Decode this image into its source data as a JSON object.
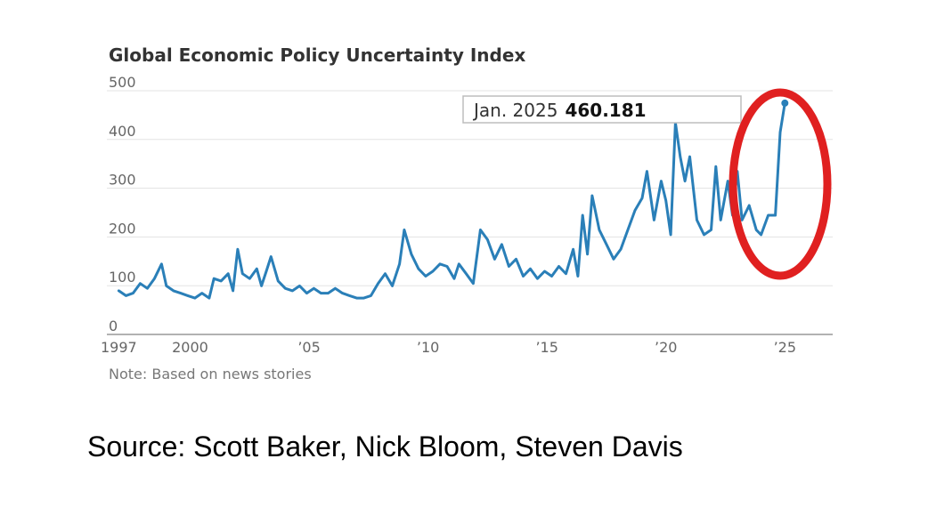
{
  "chart_data": {
    "type": "line",
    "title": "Global Economic Policy Uncertainty Index",
    "note": "Note: Based on news stories",
    "xlabel": "",
    "ylabel": "",
    "ylim": [
      0,
      500
    ],
    "xlim": [
      1996.5,
      2025.7
    ],
    "y_ticks": [
      0,
      100,
      200,
      300,
      400,
      500
    ],
    "x_ticks": [
      {
        "value": 1997,
        "label": "1997"
      },
      {
        "value": 2000,
        "label": "2000"
      },
      {
        "value": 2005,
        "label": "’05"
      },
      {
        "value": 2010,
        "label": "’10"
      },
      {
        "value": 2015,
        "label": "’15"
      },
      {
        "value": 2020,
        "label": "’20"
      },
      {
        "value": 2025,
        "label": "’25"
      }
    ],
    "grid": true,
    "legend": "none",
    "series_color": "#2a7fb8",
    "annotation": {
      "x": 2025.0,
      "y": 460.181,
      "label": "Jan. 2025",
      "value": "460.181"
    },
    "highlight_color": "#e02020",
    "series": [
      {
        "x": [
          1997.0,
          1997.3,
          1997.6,
          1997.9,
          1998.2,
          1998.5,
          1998.8,
          1999.0,
          1999.3,
          1999.6,
          1999.9,
          2000.2,
          2000.5,
          2000.8,
          2001.0,
          2001.3,
          2001.6,
          2001.8,
          2002.0,
          2002.2,
          2002.5,
          2002.8,
          2003.0,
          2003.2,
          2003.4,
          2003.7,
          2004.0,
          2004.3,
          2004.6,
          2004.9,
          2005.2,
          2005.5,
          2005.8,
          2006.1,
          2006.4,
          2006.7,
          2007.0,
          2007.3,
          2007.6,
          2007.9,
          2008.2,
          2008.5,
          2008.8,
          2009.0,
          2009.3,
          2009.6,
          2009.9,
          2010.2,
          2010.5,
          2010.8,
          2011.1,
          2011.3,
          2011.6,
          2011.9,
          2012.2,
          2012.5,
          2012.8,
          2013.1,
          2013.4,
          2013.7,
          2014.0,
          2014.3,
          2014.6,
          2014.9,
          2015.2,
          2015.5,
          2015.8,
          2016.1,
          2016.3,
          2016.5,
          2016.7,
          2016.9,
          2017.2,
          2017.5,
          2017.8,
          2018.1,
          2018.4,
          2018.7,
          2019.0,
          2019.2,
          2019.5,
          2019.8,
          2020.0,
          2020.2,
          2020.4,
          2020.6,
          2020.8,
          2021.0,
          2021.3,
          2021.6,
          2021.9,
          2022.1,
          2022.3,
          2022.6,
          2022.8,
          2023.0,
          2023.2,
          2023.5,
          2023.8,
          2024.0,
          2024.3,
          2024.6,
          2024.8,
          2025.0
        ],
        "values": [
          75,
          65,
          70,
          90,
          80,
          100,
          130,
          85,
          75,
          70,
          65,
          60,
          70,
          60,
          100,
          95,
          110,
          75,
          160,
          110,
          100,
          120,
          85,
          115,
          145,
          95,
          80,
          75,
          85,
          70,
          80,
          70,
          70,
          80,
          70,
          65,
          60,
          60,
          65,
          90,
          110,
          85,
          130,
          200,
          150,
          120,
          105,
          115,
          130,
          125,
          100,
          130,
          110,
          90,
          200,
          180,
          140,
          170,
          125,
          140,
          105,
          120,
          100,
          115,
          105,
          125,
          110,
          160,
          105,
          230,
          150,
          270,
          200,
          170,
          140,
          160,
          200,
          240,
          265,
          320,
          220,
          300,
          260,
          190,
          420,
          350,
          300,
          350,
          220,
          190,
          200,
          330,
          220,
          300,
          230,
          320,
          220,
          250,
          200,
          190,
          230,
          230,
          400,
          460
        ]
      }
    ],
    "source": "Source: Scott Baker, Nick Bloom, Steven Davis"
  }
}
